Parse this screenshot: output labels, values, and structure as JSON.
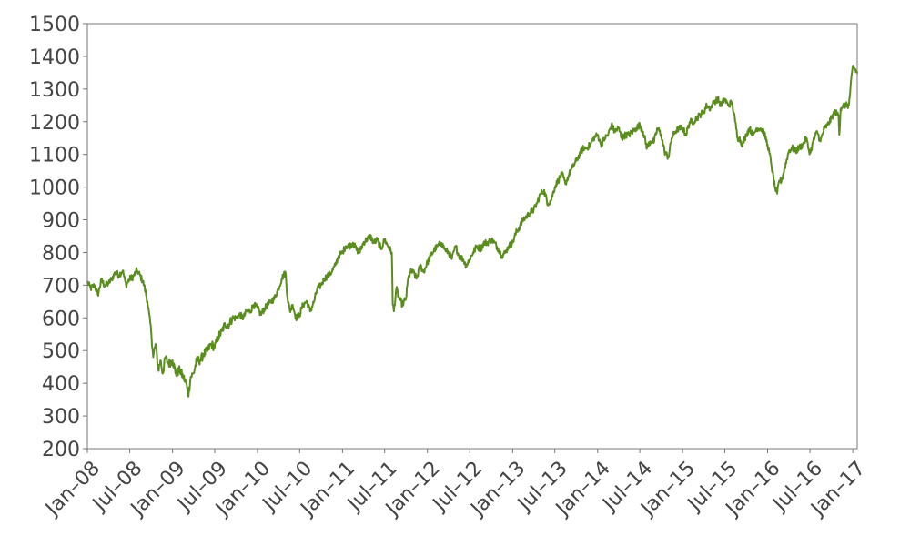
{
  "chart_data": {
    "type": "line",
    "title": "",
    "xlabel": "",
    "ylabel": "",
    "ylim": [
      200,
      1500
    ],
    "xlim": [
      "2008-01-01",
      "2017-01-20"
    ],
    "grid": false,
    "legend": "none",
    "y_ticks": [
      "200",
      "300",
      "400",
      "500",
      "600",
      "700",
      "800",
      "900",
      "1000",
      "1100",
      "1200",
      "1300",
      "1400",
      "1500"
    ],
    "x_ticks": [
      {
        "date": "2008-01-01",
        "label": "Jan–08"
      },
      {
        "date": "2008-07-01",
        "label": "Jul–08"
      },
      {
        "date": "2009-01-01",
        "label": "Jan–09"
      },
      {
        "date": "2009-07-01",
        "label": "Jul–09"
      },
      {
        "date": "2010-01-01",
        "label": "Jan–10"
      },
      {
        "date": "2010-07-01",
        "label": "Jul–10"
      },
      {
        "date": "2011-01-01",
        "label": "Jan–11"
      },
      {
        "date": "2011-07-01",
        "label": "Jul–11"
      },
      {
        "date": "2012-01-01",
        "label": "Jan–12"
      },
      {
        "date": "2012-07-01",
        "label": "Jul–12"
      },
      {
        "date": "2013-01-01",
        "label": "Jan–13"
      },
      {
        "date": "2013-07-01",
        "label": "Jul–13"
      },
      {
        "date": "2014-01-01",
        "label": "Jan–14"
      },
      {
        "date": "2014-07-01",
        "label": "Jul–14"
      },
      {
        "date": "2015-01-01",
        "label": "Jan–15"
      },
      {
        "date": "2015-07-01",
        "label": "Jul–15"
      },
      {
        "date": "2016-01-01",
        "label": "Jan–16"
      },
      {
        "date": "2016-07-01",
        "label": "Jul–16"
      },
      {
        "date": "2017-01-01",
        "label": "Jan–17"
      }
    ],
    "series": [
      {
        "color": "#5a8c1e",
        "x": [
          "2008-01-01",
          "2008-01-15",
          "2008-02-01",
          "2008-02-15",
          "2008-03-01",
          "2008-03-15",
          "2008-04-01",
          "2008-04-15",
          "2008-05-01",
          "2008-05-15",
          "2008-06-01",
          "2008-06-15",
          "2008-07-01",
          "2008-07-15",
          "2008-08-01",
          "2008-08-15",
          "2008-09-01",
          "2008-09-15",
          "2008-10-01",
          "2008-10-10",
          "2008-10-20",
          "2008-11-01",
          "2008-11-10",
          "2008-11-20",
          "2008-12-01",
          "2008-12-15",
          "2009-01-01",
          "2009-01-15",
          "2009-02-01",
          "2009-02-15",
          "2009-03-01",
          "2009-03-09",
          "2009-03-20",
          "2009-04-01",
          "2009-04-15",
          "2009-05-01",
          "2009-05-15",
          "2009-06-01",
          "2009-06-15",
          "2009-07-01",
          "2009-07-15",
          "2009-08-01",
          "2009-08-15",
          "2009-09-01",
          "2009-09-15",
          "2009-10-01",
          "2009-10-15",
          "2009-11-01",
          "2009-11-15",
          "2009-12-01",
          "2009-12-15",
          "2010-01-01",
          "2010-01-15",
          "2010-02-01",
          "2010-02-15",
          "2010-03-01",
          "2010-03-15",
          "2010-04-01",
          "2010-04-15",
          "2010-05-01",
          "2010-05-10",
          "2010-05-20",
          "2010-06-01",
          "2010-06-15",
          "2010-07-01",
          "2010-07-15",
          "2010-08-01",
          "2010-08-15",
          "2010-09-01",
          "2010-09-15",
          "2010-10-01",
          "2010-10-15",
          "2010-11-01",
          "2010-11-15",
          "2010-12-01",
          "2010-12-15",
          "2011-01-01",
          "2011-01-15",
          "2011-02-01",
          "2011-02-15",
          "2011-03-01",
          "2011-03-15",
          "2011-04-01",
          "2011-04-15",
          "2011-05-01",
          "2011-05-15",
          "2011-06-01",
          "2011-06-15",
          "2011-07-01",
          "2011-07-15",
          "2011-08-01",
          "2011-08-05",
          "2011-08-10",
          "2011-08-20",
          "2011-09-01",
          "2011-09-15",
          "2011-10-01",
          "2011-10-10",
          "2011-10-20",
          "2011-11-01",
          "2011-11-15",
          "2011-12-01",
          "2011-12-15",
          "2012-01-01",
          "2012-01-15",
          "2012-02-01",
          "2012-02-15",
          "2012-03-01",
          "2012-03-15",
          "2012-04-01",
          "2012-04-15",
          "2012-05-01",
          "2012-05-15",
          "2012-06-01",
          "2012-06-15",
          "2012-07-01",
          "2012-07-15",
          "2012-08-01",
          "2012-08-15",
          "2012-09-01",
          "2012-09-15",
          "2012-10-01",
          "2012-10-15",
          "2012-11-01",
          "2012-11-15",
          "2012-12-01",
          "2012-12-15",
          "2013-01-01",
          "2013-01-15",
          "2013-02-01",
          "2013-02-15",
          "2013-03-01",
          "2013-03-15",
          "2013-04-01",
          "2013-04-15",
          "2013-05-01",
          "2013-05-15",
          "2013-06-01",
          "2013-06-15",
          "2013-07-01",
          "2013-07-15",
          "2013-08-01",
          "2013-08-15",
          "2013-09-01",
          "2013-09-15",
          "2013-10-01",
          "2013-10-15",
          "2013-11-01",
          "2013-11-15",
          "2013-12-01",
          "2013-12-15",
          "2014-01-01",
          "2014-01-15",
          "2014-02-01",
          "2014-02-15",
          "2014-03-01",
          "2014-03-15",
          "2014-04-01",
          "2014-04-15",
          "2014-05-01",
          "2014-05-15",
          "2014-06-01",
          "2014-06-15",
          "2014-07-01",
          "2014-07-15",
          "2014-08-01",
          "2014-08-15",
          "2014-09-01",
          "2014-09-15",
          "2014-10-01",
          "2014-10-15",
          "2014-11-01",
          "2014-11-15",
          "2014-12-01",
          "2014-12-15",
          "2015-01-01",
          "2015-01-15",
          "2015-02-01",
          "2015-02-15",
          "2015-03-01",
          "2015-03-15",
          "2015-04-01",
          "2015-04-15",
          "2015-05-01",
          "2015-05-15",
          "2015-06-01",
          "2015-06-15",
          "2015-07-01",
          "2015-07-15",
          "2015-08-01",
          "2015-08-15",
          "2015-08-25",
          "2015-09-01",
          "2015-09-15",
          "2015-10-01",
          "2015-10-15",
          "2015-11-01",
          "2015-11-15",
          "2015-12-01",
          "2015-12-15",
          "2016-01-01",
          "2016-01-15",
          "2016-02-01",
          "2016-02-11",
          "2016-02-20",
          "2016-03-01",
          "2016-03-15",
          "2016-04-01",
          "2016-04-15",
          "2016-05-01",
          "2016-05-15",
          "2016-06-01",
          "2016-06-15",
          "2016-06-27",
          "2016-07-05",
          "2016-07-15",
          "2016-08-01",
          "2016-08-15",
          "2016-09-01",
          "2016-09-15",
          "2016-10-01",
          "2016-10-15",
          "2016-11-01",
          "2016-11-04",
          "2016-11-10",
          "2016-11-20",
          "2016-12-01",
          "2016-12-15",
          "2017-01-01",
          "2017-01-20"
        ],
        "y": [
          710,
          690,
          700,
          670,
          715,
          700,
          705,
          720,
          740,
          730,
          745,
          700,
          720,
          725,
          745,
          730,
          700,
          650,
          560,
          480,
          520,
          440,
          470,
          430,
          480,
          460,
          470,
          430,
          440,
          420,
          400,
          360,
          420,
          430,
          470,
          470,
          490,
          500,
          520,
          510,
          540,
          560,
          580,
          580,
          600,
          600,
          610,
          600,
          620,
          620,
          640,
          630,
          610,
          630,
          640,
          650,
          660,
          690,
          720,
          740,
          660,
          620,
          640,
          600,
          610,
          640,
          650,
          620,
          650,
          690,
          700,
          720,
          730,
          740,
          760,
          790,
          800,
          820,
          820,
          830,
          810,
          800,
          830,
          840,
          850,
          830,
          840,
          810,
          840,
          820,
          800,
          640,
          620,
          690,
          660,
          640,
          660,
          720,
          740,
          740,
          720,
          760,
          740,
          770,
          790,
          810,
          820,
          830,
          810,
          800,
          780,
          820,
          790,
          780,
          760,
          780,
          800,
          820,
          810,
          830,
          830,
          840,
          830,
          810,
          790,
          800,
          820,
          830,
          860,
          880,
          900,
          910,
          920,
          930,
          950,
          980,
          990,
          950,
          960,
          1000,
          1020,
          1040,
          1010,
          1040,
          1060,
          1080,
          1100,
          1120,
          1120,
          1130,
          1150,
          1160,
          1130,
          1150,
          1160,
          1190,
          1170,
          1180,
          1150,
          1160,
          1160,
          1170,
          1180,
          1190,
          1170,
          1120,
          1140,
          1140,
          1180,
          1160,
          1110,
          1090,
          1150,
          1170,
          1180,
          1180,
          1160,
          1200,
          1200,
          1210,
          1220,
          1230,
          1250,
          1240,
          1260,
          1270,
          1250,
          1270,
          1250,
          1260,
          1200,
          1150,
          1150,
          1130,
          1160,
          1180,
          1160,
          1180,
          1180,
          1170,
          1130,
          1080,
          1000,
          980,
          1020,
          1020,
          1060,
          1110,
          1120,
          1110,
          1120,
          1130,
          1150,
          1110,
          1110,
          1140,
          1170,
          1140,
          1180,
          1190,
          1210,
          1230,
          1220,
          1160,
          1240,
          1250,
          1250,
          1250,
          1370,
          1350
        ]
      }
    ]
  }
}
